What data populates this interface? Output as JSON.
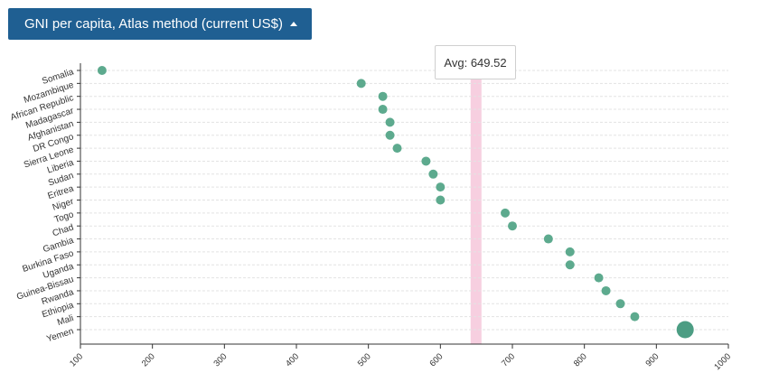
{
  "selector": {
    "label": "GNI per capita, Atlas method (current US$)",
    "caret_icon": "caret-up-icon"
  },
  "tooltip": {
    "prefix": "Avg:",
    "value": "649.52"
  },
  "colors": {
    "dot": "#5daa8e",
    "highlight_dot": "#4c9d83",
    "avg_band": "#f7cfe0",
    "selector_bg": "#1f5f92"
  },
  "chart_data": {
    "type": "scatter",
    "title": "",
    "xlabel": "",
    "ylabel": "",
    "xlim": [
      100,
      1000
    ],
    "xticks": [
      100,
      200,
      300,
      400,
      500,
      600,
      700,
      800,
      900,
      1000
    ],
    "average": 649.52,
    "grid": "horizontal-dashed",
    "categories": [
      "Somalia",
      "Mozambique",
      "African Republic",
      "Madagascar",
      "Afghanistan",
      "DR Congo",
      "Sierra Leone",
      "Liberia",
      "Sudan",
      "Eritrea",
      "Niger",
      "Togo",
      "Chad",
      "Gambia",
      "Burkina Faso",
      "Uganda",
      "Guinea-Bissau",
      "Rwanda",
      "Ethiopia",
      "Mali",
      "Yemen"
    ],
    "values": [
      130,
      490,
      520,
      520,
      530,
      530,
      540,
      580,
      590,
      600,
      600,
      690,
      700,
      750,
      780,
      780,
      820,
      830,
      850,
      870,
      940
    ],
    "highlighted": "Yemen"
  }
}
